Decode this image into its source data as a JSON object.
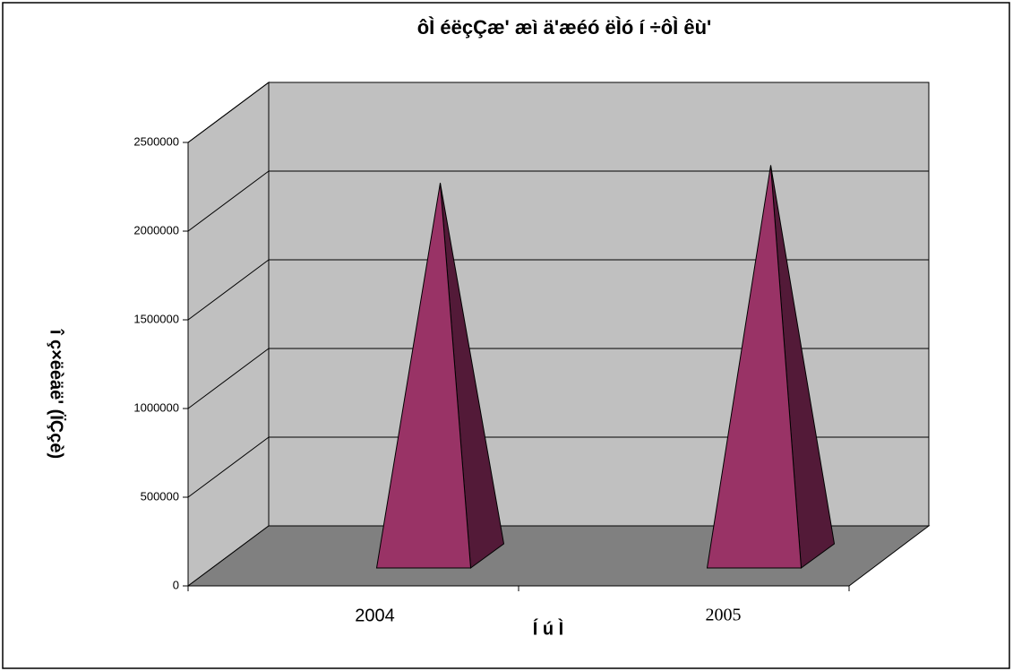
{
  "chart_data": {
    "type": "pyramid",
    "title": "ôÌ éëçÇæ' æì ä'æéó ëÌó í ÷ôÌ êù'",
    "x_label": "Í ú Ì",
    "y_label": "î ç×ëèäë' (ÏÇçè)",
    "categories": [
      "2004",
      "2005"
    ],
    "values": [
      2100000,
      2200000
    ],
    "color": "#993366",
    "ylim": [
      0,
      2500000
    ],
    "yticks": [
      0,
      500000,
      1000000,
      1500000,
      2000000,
      2500000
    ],
    "grid": true
  }
}
